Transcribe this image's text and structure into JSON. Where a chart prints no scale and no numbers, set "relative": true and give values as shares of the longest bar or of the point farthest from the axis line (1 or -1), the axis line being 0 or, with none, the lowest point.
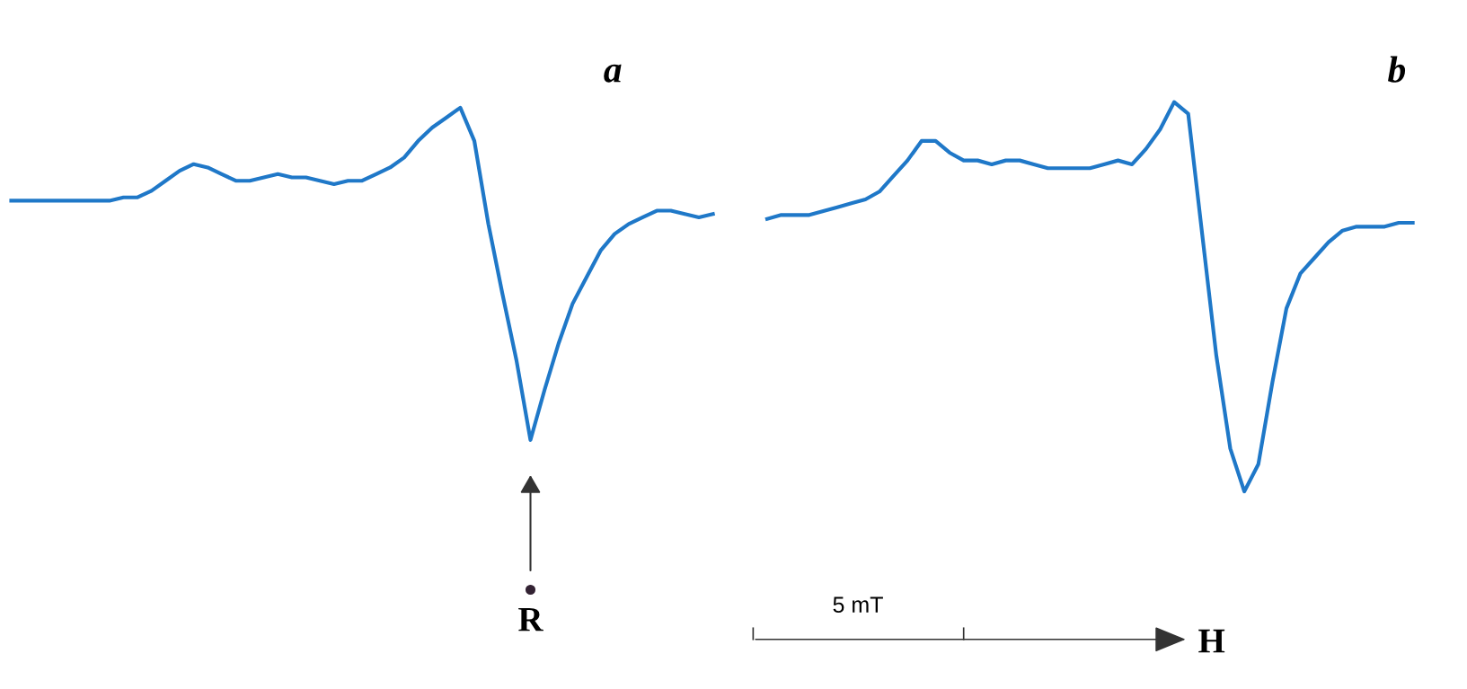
{
  "chart_data": [
    {
      "type": "line",
      "title": "a",
      "relative": true,
      "categories": [
        null,
        null,
        null,
        null,
        null,
        null,
        null,
        null,
        null,
        null,
        null,
        null,
        null,
        null,
        null,
        null,
        null,
        null,
        null,
        null,
        null,
        null,
        null,
        null,
        null,
        null,
        null,
        null,
        null,
        null,
        null,
        null,
        null,
        null,
        null,
        null,
        null,
        null,
        null,
        null,
        null,
        null,
        null,
        null,
        null,
        null,
        null,
        null,
        null,
        null,
        null
      ],
      "series": [
        {
          "color": "#1f78c8",
          "values": [
            0.72,
            0.72,
            0.72,
            0.72,
            0.72,
            0.72,
            0.72,
            0.72,
            0.73,
            0.73,
            0.75,
            0.78,
            0.81,
            0.83,
            0.82,
            0.8,
            0.78,
            0.78,
            0.79,
            0.8,
            0.79,
            0.79,
            0.78,
            0.77,
            0.78,
            0.78,
            0.8,
            0.82,
            0.85,
            0.9,
            0.94,
            0.97,
            1.0,
            0.9,
            0.65,
            0.44,
            0.24,
            0.0,
            0.15,
            0.29,
            0.41,
            0.49,
            0.57,
            0.62,
            0.65,
            0.67,
            0.69,
            0.69,
            0.68,
            0.67,
            0.68
          ]
        }
      ],
      "annotations": [
        "R"
      ]
    },
    {
      "type": "line",
      "title": "b",
      "relative": true,
      "categories": [
        null,
        null,
        null,
        null,
        null,
        null,
        null,
        null,
        null,
        null,
        null,
        null,
        null,
        null,
        null,
        null,
        null,
        null,
        null,
        null,
        null,
        null,
        null,
        null,
        null,
        null,
        null,
        null,
        null,
        null,
        null,
        null,
        null,
        null,
        null,
        null,
        null,
        null,
        null,
        null,
        null,
        null,
        null,
        null,
        null,
        null,
        null
      ],
      "series": [
        {
          "color": "#1f78c8",
          "values": [
            0.7,
            0.71,
            0.71,
            0.71,
            0.72,
            0.73,
            0.74,
            0.75,
            0.77,
            0.81,
            0.85,
            0.9,
            0.9,
            0.87,
            0.85,
            0.85,
            0.84,
            0.85,
            0.85,
            0.84,
            0.83,
            0.83,
            0.83,
            0.83,
            0.84,
            0.85,
            0.84,
            0.88,
            0.93,
            1.0,
            0.97,
            0.66,
            0.35,
            0.11,
            0.0,
            0.07,
            0.28,
            0.47,
            0.56,
            0.6,
            0.64,
            0.67,
            0.68,
            0.68,
            0.68,
            0.69,
            0.69
          ]
        }
      ],
      "annotations": [
        "5 mT",
        "H"
      ]
    }
  ]
}
